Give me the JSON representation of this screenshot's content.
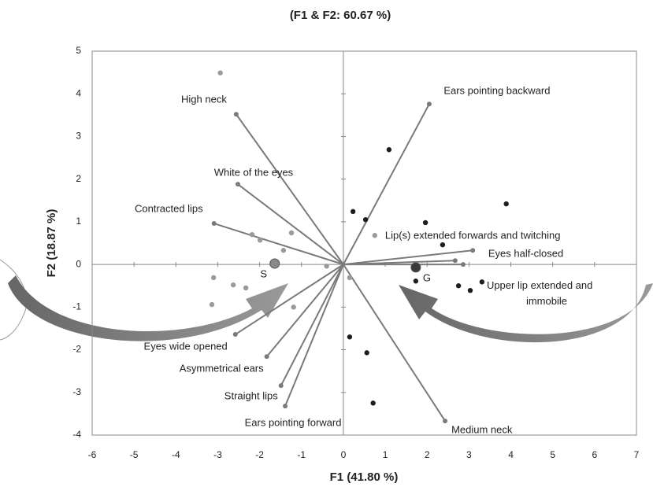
{
  "chart_data": {
    "type": "biplot",
    "title": "(F1 & F2: 60.67 %)",
    "xlabel": "F1 (41.80 %)",
    "ylabel": "F2 (18.87 %)",
    "xlim": [
      -6,
      7
    ],
    "ylim": [
      -4,
      5
    ],
    "xticks": [
      -6,
      -5,
      -4,
      -3,
      -2,
      -1,
      0,
      1,
      2,
      3,
      4,
      5,
      6,
      7
    ],
    "yticks": [
      -4,
      -3,
      -2,
      -1,
      0,
      1,
      2,
      3,
      4,
      5
    ],
    "vector_color": "#7a7a7a",
    "vectors": [
      {
        "name": "High neck",
        "x": -2.56,
        "y": 3.52
      },
      {
        "name": "White of the eyes",
        "x": -2.52,
        "y": 1.88
      },
      {
        "name": "Contracted lips",
        "x": -3.09,
        "y": 0.96
      },
      {
        "name": "Eyes wide opened",
        "x": -2.58,
        "y": -1.64
      },
      {
        "name": "Asymmetrical ears",
        "x": -1.83,
        "y": -2.16
      },
      {
        "name": "Straight lips",
        "x": -1.49,
        "y": -2.84
      },
      {
        "name": "Ears pointing forward",
        "x": -1.39,
        "y": -3.32
      },
      {
        "name": "Ears pointing backward",
        "x": 2.05,
        "y": 3.76
      },
      {
        "name": "Lip(s) extended forwards and twitching",
        "x": 3.09,
        "y": 0.33
      },
      {
        "name": "Eyes half-closed",
        "x": 2.67,
        "y": 0.09
      },
      {
        "name": "Upper lip extended and immobile",
        "x": 2.86,
        "y": 0.0
      },
      {
        "name": "Medium neck",
        "x": 2.43,
        "y": -3.67
      }
    ],
    "series": [
      {
        "color": "#9a9a9a",
        "x": [
          -2.94,
          -2.18,
          -1.99,
          -1.24,
          -1.43,
          -3.1,
          -2.63,
          -2.33,
          -3.14,
          -1.19,
          -0.4,
          0.15,
          0.75
        ],
        "y": [
          4.49,
          0.7,
          0.57,
          0.74,
          0.33,
          -0.31,
          -0.48,
          -0.55,
          -0.94,
          -1.0,
          -0.04,
          -0.31,
          0.68
        ]
      },
      {
        "color": "#1e1e1e",
        "x": [
          1.09,
          0.23,
          0.53,
          1.96,
          3.89,
          2.37,
          1.73,
          2.75,
          3.03,
          3.31,
          0.15,
          0.56,
          0.71
        ],
        "y": [
          2.69,
          1.24,
          1.05,
          0.98,
          1.42,
          0.46,
          -0.39,
          -0.5,
          -0.61,
          -0.41,
          -1.7,
          -2.07,
          -3.25
        ]
      }
    ],
    "centroids": [
      {
        "label": "S",
        "x": -1.64,
        "y": 0.02,
        "color": "#8a8a8a"
      },
      {
        "label": "G",
        "x": 1.73,
        "y": -0.07,
        "color": "#3a3a3a"
      }
    ]
  }
}
